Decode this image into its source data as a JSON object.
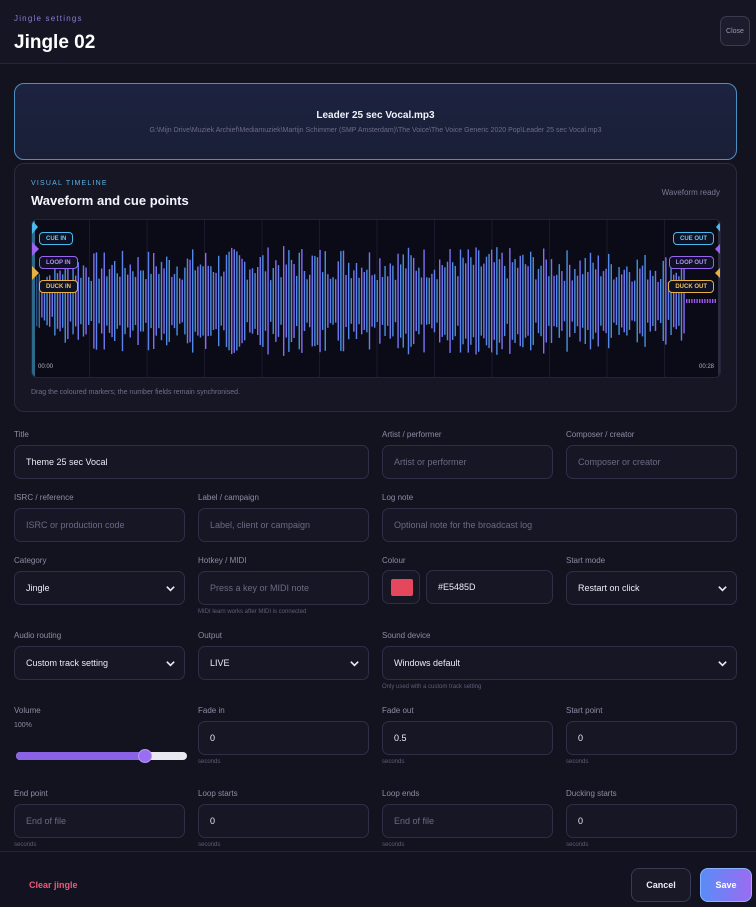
{
  "header": {
    "eyebrow": "Jingle settings",
    "title": "Jingle 02",
    "close_label": "Close"
  },
  "file": {
    "name": "Leader 25 sec Vocal.mp3",
    "path": "G:\\Mijn Drive\\Muziek Archief\\Mediamuziek\\Martijn Schimmer (SMP Amsterdam)\\The Voice\\The Voice Generic 2020 Pop\\Leader 25 sec Vocal.mp3"
  },
  "timeline": {
    "eyebrow": "VISUAL TIMELINE",
    "title": "Waveform and cue points",
    "status": "Waveform ready",
    "hint": "Drag the coloured markers; the number fields remain synchronised.",
    "start_time": "00:00",
    "end_time": "00:28",
    "markers": {
      "cue_in": "CUE IN",
      "loop_in": "LOOP IN",
      "duck_in": "DUCK IN",
      "cue_out": "CUE OUT",
      "loop_out": "LOOP OUT",
      "duck_out": "DUCK OUT"
    },
    "colors": {
      "cue": "#4AB8EA",
      "loop": "#9A64F0",
      "duck": "#E8B042",
      "wave_start": "#3FA8E8",
      "wave_end": "#9A58EE"
    }
  },
  "form": {
    "title": {
      "label": "Title",
      "value": "Theme 25 sec Vocal"
    },
    "artist": {
      "label": "Artist / performer",
      "placeholder": "Artist or performer"
    },
    "composer": {
      "label": "Composer / creator",
      "placeholder": "Composer or creator"
    },
    "isrc": {
      "label": "ISRC / reference",
      "placeholder": "ISRC or production code"
    },
    "label_campaign": {
      "label": "Label / campaign",
      "placeholder": "Label, client or campaign"
    },
    "log_note": {
      "label": "Log note",
      "placeholder": "Optional note for the broadcast log"
    },
    "category": {
      "label": "Category",
      "value": "Jingle"
    },
    "hotkey": {
      "label": "Hotkey / MIDI",
      "placeholder": "Press a key or MIDI note",
      "hint": "MIDI learn works after MIDI is connected"
    },
    "colour": {
      "label": "Colour",
      "value": "#E5485D",
      "swatch": "#E5485D"
    },
    "start_mode": {
      "label": "Start mode",
      "value": "Restart on click"
    },
    "audio_routing": {
      "label": "Audio routing",
      "value": "Custom track setting"
    },
    "output": {
      "label": "Output",
      "value": "LIVE"
    },
    "sound_device": {
      "label": "Sound device",
      "value": "Windows default",
      "hint": "Only used with a custom track setting"
    },
    "volume": {
      "label": "Volume",
      "value_text": "100%",
      "level": 0.78
    },
    "fade_in": {
      "label": "Fade in",
      "value": "0",
      "unit": "seconds"
    },
    "fade_out": {
      "label": "Fade out",
      "value": "0.5",
      "unit": "seconds"
    },
    "start_point": {
      "label": "Start point",
      "value": "0",
      "unit": "seconds"
    },
    "end_point": {
      "label": "End point",
      "placeholder": "End of file",
      "unit": "seconds"
    },
    "loop_starts": {
      "label": "Loop starts",
      "value": "0",
      "unit": "seconds"
    },
    "loop_ends": {
      "label": "Loop ends",
      "placeholder": "End of file",
      "unit": "seconds"
    },
    "ducking_starts": {
      "label": "Ducking starts",
      "value": "0",
      "unit": "seconds"
    }
  },
  "footer": {
    "clear_label": "Clear jingle",
    "cancel_label": "Cancel",
    "save_label": "Save"
  }
}
